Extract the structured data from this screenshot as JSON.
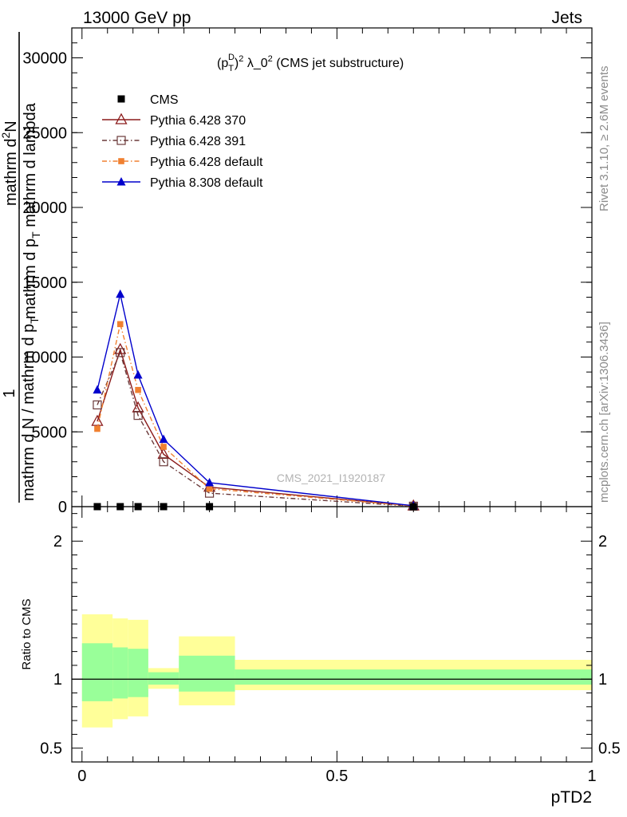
{
  "header": {
    "left": "13000 GeV pp",
    "right": "Jets"
  },
  "side_labels": {
    "rivet": "Rivet 3.1.10, ≥ 2.6M events",
    "mcplots": "mcplots.cern.ch [arXiv:1306.3436]"
  },
  "watermark": "CMS_2021_I1920187",
  "chart_data": [
    {
      "type": "line",
      "panel": "main",
      "title": "(p_T^D)^2 λ_0^2 (CMS jet substructure)",
      "title_parts": {
        "a": "(p",
        "sub": "T",
        "sup": "D",
        "b": ")",
        "sup2": "2",
        "c": " λ_0",
        "sup3": "2",
        "d": " (CMS jet substructure)"
      },
      "ylabel_parts": {
        "one": "1",
        "den": "mathrm d N / mathrm d p",
        "den_sub": "T",
        "num2": "mathrm d",
        "num2_sup": "2",
        "num2_rest": "N",
        "den2": "mathrm d p",
        "den2_sub": "T",
        "den2_rest": " mathrm d lambda"
      },
      "ylim": [
        0,
        32000
      ],
      "xlim": [
        -0.02,
        1.0
      ],
      "yticks": [
        {
          "v": 0,
          "label": "0"
        },
        {
          "v": 5000,
          "label": "5000"
        },
        {
          "v": 10000,
          "label": "10000"
        },
        {
          "v": 15000,
          "label": "15000"
        },
        {
          "v": 20000,
          "label": "20000"
        },
        {
          "v": 25000,
          "label": "25000"
        },
        {
          "v": 30000,
          "label": "30000"
        }
      ],
      "legend_position": "top-left",
      "series": [
        {
          "name": "CMS",
          "color": "#000000",
          "marker": "square-filled",
          "line": "none",
          "x": [
            0.03,
            0.075,
            0.11,
            0.16,
            0.25,
            0.65
          ],
          "y": [
            0,
            0,
            0,
            0,
            0,
            0
          ]
        },
        {
          "name": "Pythia 6.428 370",
          "color": "#8b1a1a",
          "marker": "triangle-open",
          "line": "solid",
          "x": [
            0.03,
            0.075,
            0.11,
            0.16,
            0.25,
            0.65
          ],
          "y": [
            5700,
            10500,
            6600,
            3500,
            1300,
            50
          ]
        },
        {
          "name": "Pythia 6.428 391",
          "color": "#6b3a3a",
          "marker": "square-open",
          "line": "dashdot",
          "x": [
            0.03,
            0.075,
            0.11,
            0.16,
            0.25,
            0.65
          ],
          "y": [
            6800,
            10300,
            6100,
            3000,
            900,
            30
          ]
        },
        {
          "name": "Pythia 6.428 default",
          "color": "#f08030",
          "marker": "square-filled-small",
          "line": "dashdot",
          "x": [
            0.03,
            0.075,
            0.11,
            0.16,
            0.25,
            0.65
          ],
          "y": [
            5200,
            12200,
            7800,
            4000,
            1200,
            40
          ]
        },
        {
          "name": "Pythia 8.308 default",
          "color": "#0000cc",
          "marker": "triangle-filled",
          "line": "solid",
          "x": [
            0.03,
            0.075,
            0.11,
            0.16,
            0.25,
            0.65
          ],
          "y": [
            7800,
            14200,
            8800,
            4500,
            1600,
            60
          ]
        }
      ]
    },
    {
      "type": "area",
      "panel": "ratio",
      "ylabel": "Ratio to CMS",
      "xlabel": "pTD2",
      "ylim": [
        0.4,
        2.25
      ],
      "xlim": [
        -0.02,
        1.0
      ],
      "xticks": [
        {
          "v": 0,
          "label": "0"
        },
        {
          "v": 0.5,
          "label": "0.5"
        },
        {
          "v": 1,
          "label": "1"
        }
      ],
      "yticks": [
        {
          "v": 0.5,
          "label": "0.5"
        },
        {
          "v": 1,
          "label": "1"
        },
        {
          "v": 2,
          "label": "2"
        }
      ],
      "reference_line": 1,
      "bands": {
        "outer_color": "#ffff99",
        "inner_color": "#99ff99",
        "bins": [
          {
            "x0": 0.0,
            "x1": 0.06,
            "outer": [
              0.65,
              1.47
            ],
            "inner": [
              0.84,
              1.26
            ]
          },
          {
            "x0": 0.06,
            "x1": 0.09,
            "outer": [
              0.71,
              1.44
            ],
            "inner": [
              0.86,
              1.23
            ]
          },
          {
            "x0": 0.09,
            "x1": 0.13,
            "outer": [
              0.73,
              1.43
            ],
            "inner": [
              0.87,
              1.22
            ]
          },
          {
            "x0": 0.13,
            "x1": 0.19,
            "outer": [
              0.93,
              1.08
            ],
            "inner": [
              0.96,
              1.05
            ]
          },
          {
            "x0": 0.19,
            "x1": 0.3,
            "outer": [
              0.81,
              1.31
            ],
            "inner": [
              0.91,
              1.17
            ]
          },
          {
            "x0": 0.3,
            "x1": 1.0,
            "outer": [
              0.92,
              1.14
            ],
            "inner": [
              0.96,
              1.07
            ]
          }
        ]
      }
    }
  ]
}
